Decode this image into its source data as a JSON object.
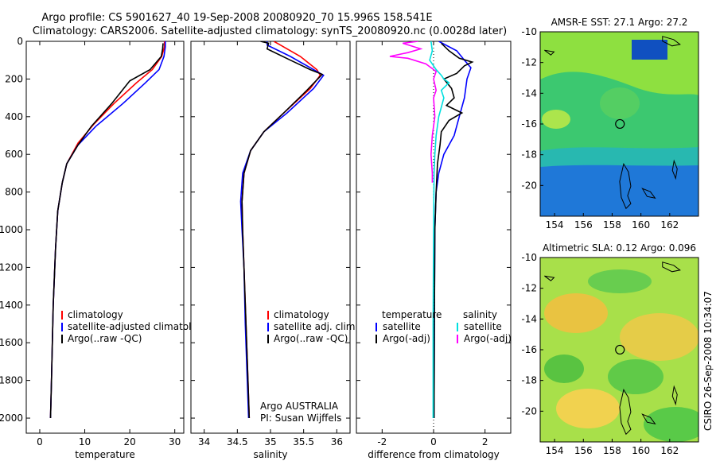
{
  "title": {
    "line1": "Argo profile: CS 5901627_40 19-Sep-2008 20080920_70 15.996S 158.541E",
    "line2": "Climatology: CARS2006. Satellite-adjusted climatology: synTS_20080920.nc (0.0028d later)"
  },
  "side_label": "CSIRO 26-Sep-2008 10:34:07",
  "colors": {
    "climatology": "#ff0000",
    "satellite": "#0000ff",
    "argo": "#000000",
    "sal_satellite": "#00e0e0",
    "sal_argo": "#ff00ff"
  },
  "chart_data": [
    {
      "type": "line",
      "xlabel": "temperature",
      "xlim": [
        -3,
        32
      ],
      "ylim": [
        2080,
        0
      ],
      "x_ticks": [
        0,
        10,
        20,
        30
      ],
      "y_ticks": [
        0,
        200,
        400,
        600,
        800,
        1000,
        1200,
        1400,
        1600,
        1800,
        2000
      ],
      "legend": [
        "climatology",
        "satellite-adjusted climatology",
        "Argo(..raw -QC)"
      ],
      "series": [
        {
          "name": "climatology",
          "color": "#ff0000",
          "points": [
            [
              27.7,
              0
            ],
            [
              27.7,
              30
            ],
            [
              27.1,
              80
            ],
            [
              25.0,
              150
            ],
            [
              21.5,
              220
            ],
            [
              16.5,
              330
            ],
            [
              12.0,
              440
            ],
            [
              8.5,
              540
            ],
            [
              6.0,
              650
            ],
            [
              5.0,
              750
            ],
            [
              4.0,
              900
            ],
            [
              3.5,
              1100
            ],
            [
              3.0,
              1400
            ],
            [
              2.6,
              1800
            ],
            [
              2.4,
              2000
            ]
          ]
        },
        {
          "name": "satellite-adjusted climatology",
          "color": "#0000ff",
          "points": [
            [
              27.9,
              0
            ],
            [
              27.9,
              30
            ],
            [
              27.6,
              80
            ],
            [
              26.5,
              150
            ],
            [
              23.5,
              220
            ],
            [
              18.5,
              330
            ],
            [
              12.5,
              450
            ],
            [
              8.5,
              550
            ],
            [
              6.0,
              650
            ],
            [
              5.0,
              750
            ],
            [
              4.0,
              900
            ],
            [
              3.5,
              1100
            ],
            [
              3.0,
              1400
            ],
            [
              2.6,
              1800
            ],
            [
              2.4,
              2000
            ]
          ]
        },
        {
          "name": "Argo(..raw -QC)",
          "color": "#000000",
          "points": [
            [
              27.4,
              10
            ],
            [
              27.3,
              40
            ],
            [
              27.0,
              80
            ],
            [
              24.5,
              150
            ],
            [
              20.0,
              210
            ],
            [
              16.0,
              330
            ],
            [
              11.5,
              450
            ],
            [
              8.5,
              550
            ],
            [
              6.0,
              650
            ],
            [
              5.0,
              750
            ],
            [
              4.0,
              900
            ],
            [
              3.5,
              1100
            ],
            [
              3.0,
              1400
            ],
            [
              2.6,
              1800
            ],
            [
              2.4,
              2000
            ]
          ]
        }
      ]
    },
    {
      "type": "line",
      "xlabel": "salinity",
      "xlim": [
        33.8,
        36.2
      ],
      "ylim": [
        2080,
        0
      ],
      "x_ticks": [
        34,
        34.5,
        35,
        35.5,
        36
      ],
      "x_tick_labels": [
        "34",
        "34.5",
        "35",
        "35.5",
        "36"
      ],
      "legend": [
        "climatology",
        "satellite adj. clim.",
        "Argo(..raw -QC)"
      ],
      "annotations": [
        "Argo AUSTRALIA",
        "PI: Susan Wijffels"
      ],
      "series": [
        {
          "name": "climatology",
          "color": "#ff0000",
          "points": [
            [
              35.05,
              0
            ],
            [
              35.15,
              20
            ],
            [
              35.45,
              80
            ],
            [
              35.7,
              150
            ],
            [
              35.75,
              180
            ],
            [
              35.6,
              250
            ],
            [
              35.2,
              380
            ],
            [
              34.9,
              480
            ],
            [
              34.7,
              580
            ],
            [
              34.6,
              700
            ],
            [
              34.57,
              850
            ],
            [
              34.58,
              1000
            ],
            [
              34.6,
              1200
            ],
            [
              34.63,
              1500
            ],
            [
              34.66,
              1800
            ],
            [
              34.68,
              2000
            ]
          ]
        },
        {
          "name": "satellite adj. clim.",
          "color": "#0000ff",
          "points": [
            [
              34.95,
              0
            ],
            [
              34.95,
              20
            ],
            [
              35.3,
              80
            ],
            [
              35.65,
              150
            ],
            [
              35.8,
              180
            ],
            [
              35.65,
              250
            ],
            [
              35.25,
              380
            ],
            [
              34.9,
              480
            ],
            [
              34.7,
              580
            ],
            [
              34.58,
              700
            ],
            [
              34.55,
              850
            ],
            [
              34.57,
              1000
            ],
            [
              34.6,
              1200
            ],
            [
              34.62,
              1500
            ],
            [
              34.65,
              1800
            ],
            [
              34.67,
              2000
            ]
          ]
        },
        {
          "name": "Argo(..raw -QC)",
          "color": "#000000",
          "points": [
            [
              34.85,
              0
            ],
            [
              34.97,
              10
            ],
            [
              34.95,
              40
            ],
            [
              35.3,
              100
            ],
            [
              35.6,
              150
            ],
            [
              35.78,
              175
            ],
            [
              35.55,
              260
            ],
            [
              35.2,
              380
            ],
            [
              34.9,
              480
            ],
            [
              34.7,
              580
            ],
            [
              34.6,
              700
            ],
            [
              34.57,
              850
            ],
            [
              34.58,
              1000
            ],
            [
              34.6,
              1200
            ],
            [
              34.63,
              1500
            ],
            [
              34.66,
              1800
            ],
            [
              34.68,
              2000
            ]
          ]
        }
      ]
    },
    {
      "type": "line",
      "xlabel": "difference from climatology",
      "xlim": [
        -3,
        3
      ],
      "ylim": [
        2080,
        0
      ],
      "x_ticks": [
        -2,
        0,
        2
      ],
      "zero_line": true,
      "legend_groups": [
        {
          "title": "temperature",
          "entries": [
            "satellite",
            "Argo(-adj)"
          ]
        },
        {
          "title": "salinity",
          "entries": [
            "satellite",
            "Argo(-adj)"
          ]
        }
      ],
      "series": [
        {
          "name": "temperature satellite",
          "color": "#0000ff",
          "points": [
            [
              0.2,
              0
            ],
            [
              0.9,
              50
            ],
            [
              1.2,
              100
            ],
            [
              1.45,
              140
            ],
            [
              1.3,
              200
            ],
            [
              1.2,
              300
            ],
            [
              1.0,
              400
            ],
            [
              0.8,
              500
            ],
            [
              0.4,
              600
            ],
            [
              0.2,
              700
            ],
            [
              0.1,
              800
            ],
            [
              0.05,
              1000
            ],
            [
              0.03,
              1500
            ],
            [
              0.02,
              2000
            ]
          ]
        },
        {
          "name": "temperature Argo(-adj)",
          "color": "#000000",
          "points": [
            [
              0.3,
              10
            ],
            [
              0.6,
              50
            ],
            [
              1.0,
              90
            ],
            [
              1.5,
              110
            ],
            [
              1.2,
              130
            ],
            [
              0.9,
              170
            ],
            [
              0.4,
              200
            ],
            [
              0.7,
              250
            ],
            [
              0.8,
              300
            ],
            [
              0.5,
              340
            ],
            [
              1.1,
              380
            ],
            [
              0.6,
              420
            ],
            [
              0.3,
              480
            ],
            [
              0.25,
              550
            ],
            [
              0.15,
              650
            ],
            [
              0.1,
              800
            ],
            [
              0.05,
              1000
            ],
            [
              0.03,
              1500
            ],
            [
              0.02,
              2000
            ]
          ]
        },
        {
          "name": "salinity satellite",
          "color": "#00e0e0",
          "points": [
            [
              -0.1,
              0
            ],
            [
              -0.05,
              50
            ],
            [
              -0.15,
              100
            ],
            [
              0.1,
              150
            ],
            [
              0.3,
              180
            ],
            [
              0.4,
              200
            ],
            [
              0.6,
              220
            ],
            [
              0.3,
              260
            ],
            [
              0.4,
              300
            ],
            [
              0.2,
              400
            ],
            [
              0.1,
              500
            ],
            [
              0.05,
              600
            ],
            [
              0.02,
              700
            ],
            [
              0.0,
              1000
            ],
            [
              -0.02,
              1500
            ],
            [
              -0.02,
              2000
            ]
          ]
        },
        {
          "name": "salinity Argo(-adj)",
          "color": "#ff00ff",
          "points": [
            [
              -0.6,
              0
            ],
            [
              -1.2,
              10
            ],
            [
              -0.5,
              40
            ],
            [
              -1.0,
              60
            ],
            [
              -1.7,
              80
            ],
            [
              -1.0,
              90
            ],
            [
              -0.3,
              120
            ],
            [
              0.1,
              160
            ],
            [
              0.0,
              200
            ],
            [
              0.1,
              260
            ],
            [
              0.0,
              300
            ],
            [
              0.05,
              400
            ],
            [
              -0.05,
              500
            ],
            [
              -0.1,
              600
            ],
            [
              -0.05,
              700
            ],
            [
              -0.05,
              750
            ]
          ]
        }
      ]
    },
    {
      "type": "heatmap",
      "title": "AMSR-E SST: 27.1 Argo: 27.2",
      "xlim": [
        153,
        164
      ],
      "ylim": [
        -22,
        -10
      ],
      "x_ticks": [
        154,
        156,
        158,
        160,
        162
      ],
      "y_ticks": [
        -10,
        -12,
        -14,
        -16,
        -18,
        -20
      ],
      "argo_position": [
        158.541,
        -15.996
      ]
    },
    {
      "type": "heatmap",
      "title": "Altimetric SLA: 0.12 Argo: 0.096",
      "xlim": [
        153,
        164
      ],
      "ylim": [
        -22,
        -10
      ],
      "x_ticks": [
        154,
        156,
        158,
        160,
        162
      ],
      "y_ticks": [
        -10,
        -12,
        -14,
        -16,
        -18,
        -20
      ],
      "argo_position": [
        158.541,
        -15.996
      ]
    }
  ]
}
